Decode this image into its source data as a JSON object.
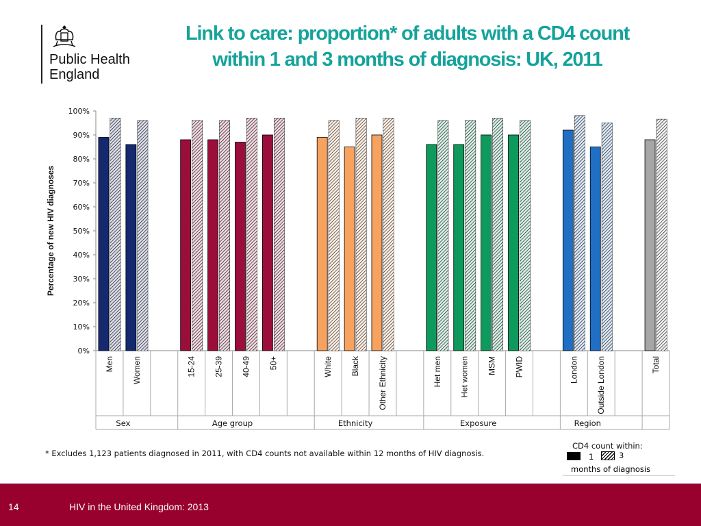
{
  "logo": {
    "line1": "Public Health",
    "line2": "England"
  },
  "title": "Link to care: proportion* of adults with a CD4 count within 1 and 3 months of diagnosis: UK, 2011",
  "footnote": "* Excludes 1,123 patients diagnosed in 2011, with CD4 counts not available within 12 months of HIV diagnosis.",
  "legend": {
    "title": "CD4 count within:",
    "label1": "1",
    "label3": "3",
    "unit": "months of diagnosis"
  },
  "footer": {
    "page": "14",
    "text": "HIV in the United Kingdom: 2013"
  },
  "chart_data": {
    "type": "bar",
    "ylabel": "Percentage of new HIV diagnoses",
    "ylim": [
      0,
      100
    ],
    "yticks": [
      "0%",
      "10%",
      "20%",
      "30%",
      "40%",
      "50%",
      "60%",
      "70%",
      "80%",
      "90%",
      "100%"
    ],
    "grid": false,
    "legend_position": "bottom-right",
    "groups": [
      {
        "name": "Sex",
        "color": "#14296e",
        "categories": [
          "Men",
          "Women"
        ],
        "within_1": [
          89,
          86
        ],
        "within_3": [
          97,
          96
        ]
      },
      {
        "name": "Age group",
        "color": "#9b0d3a",
        "categories": [
          "15-24",
          "25-39",
          "40-49",
          "50+"
        ],
        "within_1": [
          88,
          88,
          87,
          90
        ],
        "within_3": [
          96,
          96,
          97,
          97
        ]
      },
      {
        "name": "Ethnicity",
        "color": "#f7a25f",
        "categories": [
          "White",
          "Black",
          "Other Ethnicity"
        ],
        "within_1": [
          89,
          85,
          90
        ],
        "within_3": [
          96,
          97,
          97
        ]
      },
      {
        "name": "Exposure",
        "color": "#0e9a5c",
        "categories": [
          "Het men",
          "Het women",
          "MSM",
          "PWID"
        ],
        "within_1": [
          86,
          86,
          90,
          90
        ],
        "within_3": [
          96,
          96,
          97,
          96
        ]
      },
      {
        "name": "Region",
        "color": "#1f6fc4",
        "categories": [
          "London",
          "Outside London"
        ],
        "within_1": [
          92,
          85
        ],
        "within_3": [
          98,
          95
        ]
      },
      {
        "name": "",
        "color": "#a6a6a6",
        "categories": [
          "Total"
        ],
        "within_1": [
          88
        ],
        "within_3": [
          96.5
        ]
      }
    ]
  }
}
